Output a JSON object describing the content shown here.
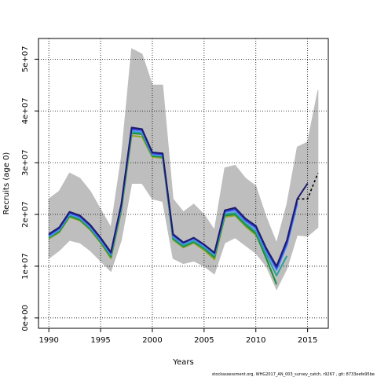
{
  "chart_data": {
    "type": "line",
    "xlabel": "Years",
    "ylabel": "Recruits (age 0)",
    "footer": "stockassessment.org, WHG2017_AN_003_survey_catch, r9267 , git: 8733eefe95be",
    "xlim": [
      1989,
      2017
    ],
    "ylim": [
      -2000000,
      54000000
    ],
    "x_ticks": [
      1990,
      1995,
      2000,
      2005,
      2010,
      2015
    ],
    "y_ticks": [
      0,
      10000000,
      20000000,
      30000000,
      40000000,
      50000000
    ],
    "y_tick_labels": [
      "0e+00",
      "1e+07",
      "2e+07",
      "3e+07",
      "4e+07",
      "5e+07"
    ],
    "grid": true,
    "confidence_band": {
      "x": [
        1990,
        1991,
        1992,
        1993,
        1994,
        1995,
        1996,
        1997,
        1998,
        1999,
        2000,
        2001,
        2002,
        2003,
        2004,
        2005,
        2006,
        2007,
        2008,
        2009,
        2010,
        2011,
        2012,
        2013,
        2014,
        2015,
        2016
      ],
      "upper": [
        23000000,
        24500000,
        28000000,
        27000000,
        24500000,
        21000000,
        17500000,
        31000000,
        52000000,
        51000000,
        45000000,
        45000000,
        23000000,
        20500000,
        22000000,
        20000000,
        17000000,
        29000000,
        29500000,
        27000000,
        25500000,
        19500000,
        14500000,
        22000000,
        33000000,
        34000000,
        44000000
      ],
      "lower": [
        11500000,
        13000000,
        15000000,
        14500000,
        13000000,
        11000000,
        9000000,
        15000000,
        26000000,
        26000000,
        23000000,
        22500000,
        11500000,
        10500000,
        11000000,
        10000000,
        8500000,
        14500000,
        15500000,
        14000000,
        12500000,
        10000000,
        5500000,
        9500000,
        16000000,
        15800000,
        17500000
      ]
    },
    "series": [
      {
        "color": "#1c1c6e",
        "x": [
          1990,
          1991,
          1992,
          1993,
          1994,
          1995,
          1996,
          1997,
          1998,
          1999,
          2000,
          2001,
          2002,
          2003,
          2004,
          2005,
          2006,
          2007,
          2008,
          2009,
          2010,
          2011,
          2012,
          2013,
          2014,
          2015
        ],
        "values": [
          16200000,
          17500000,
          20500000,
          19800000,
          18000000,
          15500000,
          12700000,
          22000000,
          36800000,
          36500000,
          32000000,
          31800000,
          16200000,
          14600000,
          15500000,
          14200000,
          12600000,
          20800000,
          21300000,
          19200000,
          17800000,
          13500000,
          10000000,
          15000000,
          23000000,
          26000000
        ]
      },
      {
        "color": "#3a3ad0",
        "x": [
          1990,
          1991,
          1992,
          1993,
          1994,
          1995,
          1996,
          1997,
          1998,
          1999,
          2000,
          2001,
          2002,
          2003,
          2004,
          2005,
          2006,
          2007,
          2008,
          2009,
          2010,
          2011,
          2012,
          2013,
          2014
        ],
        "values": [
          16000000,
          17300000,
          20300000,
          19600000,
          17800000,
          15300000,
          12500000,
          21800000,
          36500000,
          36300000,
          31800000,
          31600000,
          16000000,
          14500000,
          15400000,
          14100000,
          12500000,
          20600000,
          21000000,
          18900000,
          17500000,
          13200000,
          9600000,
          14500000,
          22500000
        ]
      },
      {
        "color": "#5599ff",
        "x": [
          1990,
          1991,
          1992,
          1993,
          1994,
          1995,
          1996,
          1997,
          1998,
          1999,
          2000,
          2001,
          2002,
          2003,
          2004,
          2005,
          2006,
          2007,
          2008,
          2009,
          2010,
          2011,
          2012,
          2013,
          2014
        ],
        "values": [
          15800000,
          17100000,
          20100000,
          19400000,
          17600000,
          15100000,
          12300000,
          21500000,
          36200000,
          36000000,
          31600000,
          31400000,
          15800000,
          14300000,
          15200000,
          13900000,
          12300000,
          20400000,
          20700000,
          18700000,
          17200000,
          12900000,
          9200000,
          14000000,
          22000000
        ]
      },
      {
        "color": "#2aa198",
        "x": [
          1990,
          1991,
          1992,
          1993,
          1994,
          1995,
          1996,
          1997,
          1998,
          1999,
          2000,
          2001,
          2002,
          2003,
          2004,
          2005,
          2006,
          2007,
          2008,
          2009,
          2010,
          2011,
          2012,
          2013
        ],
        "values": [
          15600000,
          16900000,
          19900000,
          19200000,
          17400000,
          14900000,
          12100000,
          21200000,
          36000000,
          35800000,
          31500000,
          31300000,
          15500000,
          14000000,
          14900000,
          13600000,
          12000000,
          20100000,
          20300000,
          18300000,
          16700000,
          12300000,
          8200000,
          12000000
        ]
      },
      {
        "color": "#1e8c3a",
        "x": [
          1990,
          1991,
          1992,
          1993,
          1994,
          1995,
          1996,
          1997,
          1998,
          1999,
          2000,
          2001,
          2002,
          2003,
          2004,
          2005,
          2006,
          2007,
          2008,
          2009,
          2010,
          2011,
          2012
        ],
        "values": [
          15500000,
          16700000,
          19700000,
          19000000,
          17200000,
          14700000,
          11800000,
          21000000,
          35700000,
          35500000,
          31300000,
          31100000,
          15300000,
          13800000,
          14700000,
          13400000,
          11700000,
          19800000,
          20000000,
          18000000,
          16300000,
          11500000,
          6500000
        ]
      },
      {
        "color": "#8fa82a",
        "x": [
          1990,
          1991,
          1992,
          1993,
          1994,
          1995,
          1996,
          1997,
          1998,
          1999,
          2000,
          2001,
          2002,
          2003,
          2004,
          2005,
          2006,
          2007,
          2008,
          2009,
          2010,
          2011
        ],
        "values": [
          15300000,
          16500000,
          19500000,
          18800000,
          17000000,
          14500000,
          11500000,
          20600000,
          35200000,
          35000000,
          31100000,
          30900000,
          15100000,
          13600000,
          14500000,
          13100000,
          11300000,
          19500000,
          19800000,
          17700000,
          16000000,
          12500000
        ]
      },
      {
        "color": "#000000",
        "dashed": true,
        "x": [
          1990,
          1991,
          1992,
          1993,
          1994,
          1995,
          1996,
          1997,
          1998,
          1999,
          2000,
          2001,
          2002,
          2003,
          2004,
          2005,
          2006,
          2007,
          2008,
          2009,
          2010,
          2011,
          2012,
          2013,
          2014,
          2015,
          2016
        ],
        "values": [
          16000000,
          17400000,
          20400000,
          19700000,
          17900000,
          15400000,
          12600000,
          21900000,
          36600000,
          36400000,
          31900000,
          31700000,
          16100000,
          14500000,
          15400000,
          14100000,
          12500000,
          20700000,
          21200000,
          19000000,
          17600000,
          13300000,
          9800000,
          14800000,
          23000000,
          23000000,
          28000000
        ]
      }
    ]
  }
}
